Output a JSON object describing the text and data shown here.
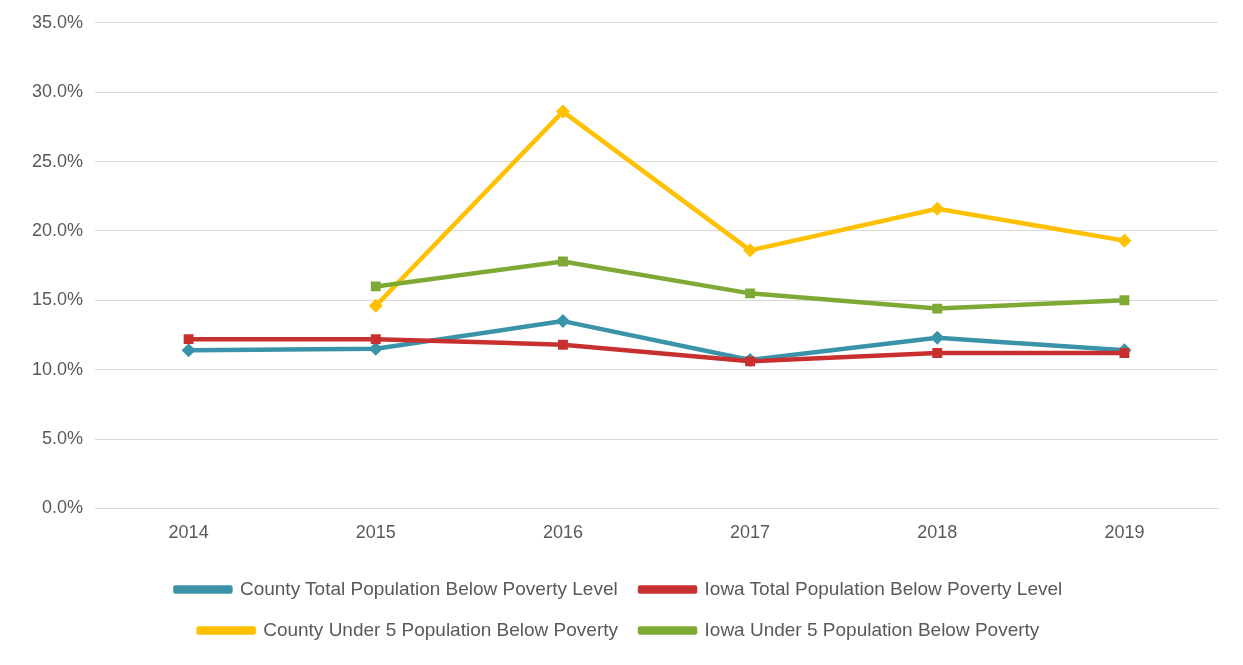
{
  "chart_data": {
    "type": "line",
    "categories": [
      "2014",
      "2015",
      "2016",
      "2017",
      "2018",
      "2019"
    ],
    "series": [
      {
        "name": "County Total Population Below Poverty Level",
        "color": "#3a93a8",
        "marker": "diamond",
        "values": [
          11.4,
          11.5,
          13.5,
          10.7,
          12.3,
          11.4
        ]
      },
      {
        "name": "Iowa Total Population Below Poverty Level",
        "color": "#c8302f",
        "marker": "square",
        "values": [
          12.2,
          12.2,
          11.8,
          10.6,
          11.2,
          11.2
        ]
      },
      {
        "name": "County Under 5 Population Below Poverty",
        "color": "#ffc000",
        "marker": "diamond",
        "values": [
          null,
          14.6,
          28.6,
          18.6,
          21.6,
          19.3
        ]
      },
      {
        "name": "Iowa Under 5 Population Below Poverty",
        "color": "#7fa935",
        "marker": "square",
        "values": [
          null,
          16.0,
          17.8,
          15.5,
          14.4,
          15.0
        ]
      }
    ],
    "ylim": [
      0,
      35
    ],
    "yticks": [
      {
        "value": 0,
        "label": "0.0%"
      },
      {
        "value": 5,
        "label": "5.0%"
      },
      {
        "value": 10,
        "label": "10.0%"
      },
      {
        "value": 15,
        "label": "15.0%"
      },
      {
        "value": 20,
        "label": "20.0%"
      },
      {
        "value": 25,
        "label": "25.0%"
      },
      {
        "value": 30,
        "label": "30.0%"
      },
      {
        "value": 35,
        "label": "35.0%"
      }
    ],
    "grid": "y",
    "legend": "bottom",
    "line_style": "solid"
  }
}
